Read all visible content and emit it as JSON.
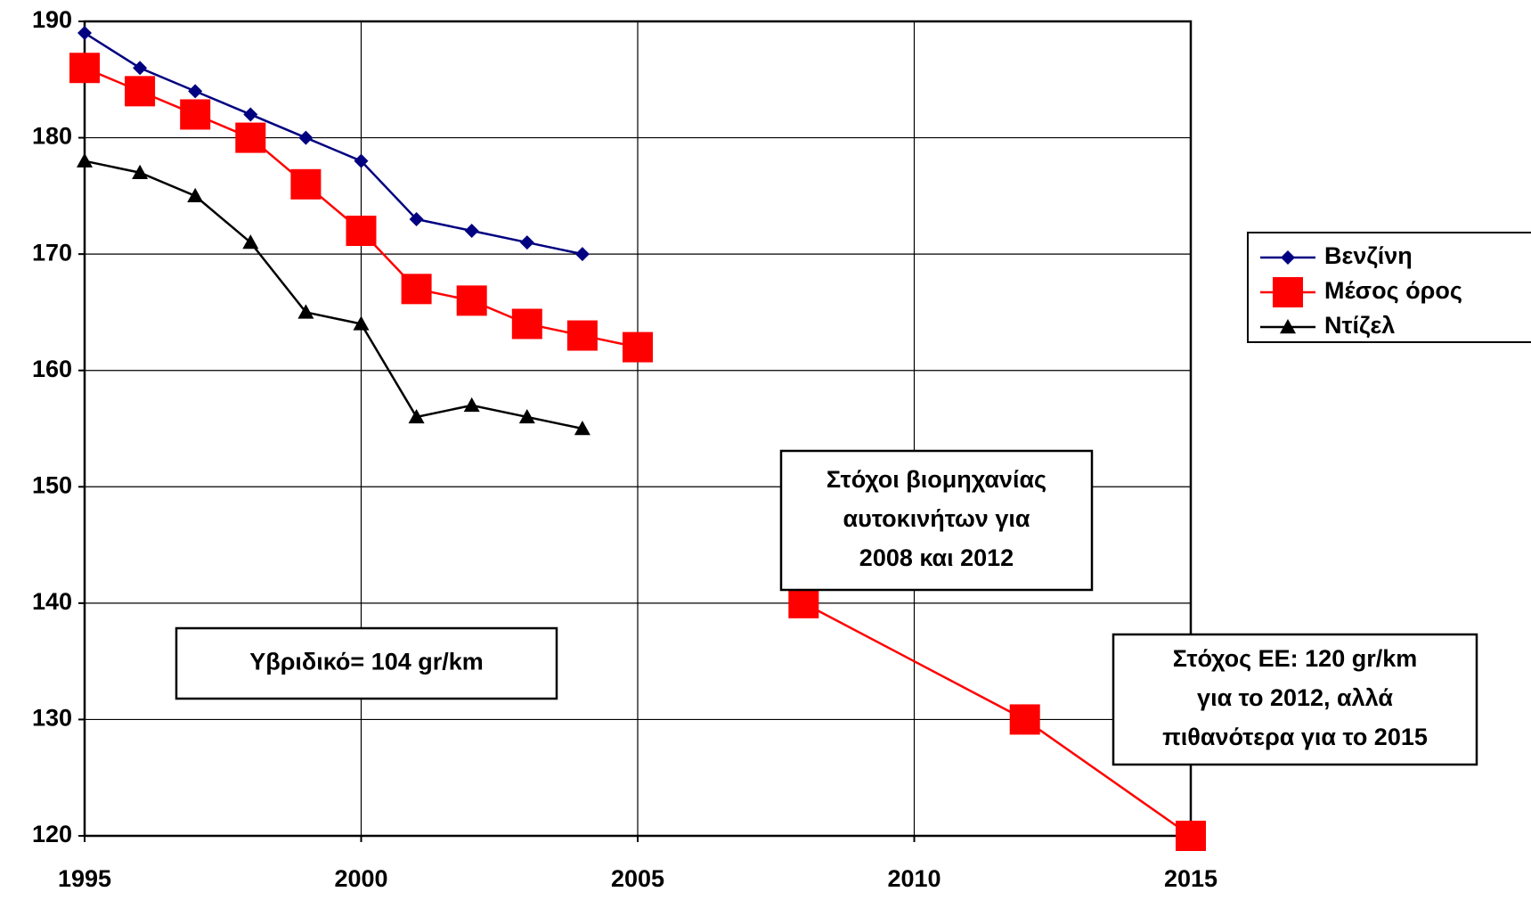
{
  "chart_data": {
    "type": "line",
    "xlim": [
      1995,
      2015
    ],
    "xticks": [
      1995,
      2000,
      2005,
      2010,
      2015
    ],
    "ylim": [
      120,
      190
    ],
    "yticks": [
      120,
      130,
      140,
      150,
      160,
      170,
      180,
      190
    ],
    "grid": true,
    "legend": "right",
    "series": [
      {
        "name": "Βενζίνη",
        "color": "#000080",
        "marker": "diamond",
        "x": [
          1995,
          1996,
          1997,
          1998,
          1999,
          2000,
          2001,
          2002,
          2003,
          2004
        ],
        "values": [
          189,
          186,
          184,
          182,
          180,
          178,
          173,
          172,
          171,
          170
        ]
      },
      {
        "name": "Μέσος όρος",
        "color": "#ff0000",
        "marker": "square",
        "x": [
          1995,
          1996,
          1997,
          1998,
          1999,
          2000,
          2001,
          2002,
          2003,
          2004,
          2005,
          null,
          2008,
          2012,
          2015
        ],
        "values": [
          186,
          184,
          182,
          180,
          176,
          172,
          167,
          166,
          164,
          163,
          162,
          null,
          140,
          130,
          120
        ]
      },
      {
        "name": "Ντίζελ",
        "color": "#000000",
        "marker": "triangle",
        "x": [
          1995,
          1996,
          1997,
          1998,
          1999,
          2000,
          2001,
          2002,
          2003,
          2004
        ],
        "values": [
          178,
          177,
          175,
          171,
          165,
          164,
          156,
          157,
          156,
          155
        ]
      }
    ],
    "annotations": [
      {
        "lines": [
          "Υβριδικό= 104 gr/km"
        ]
      },
      {
        "lines": [
          "Στόχοι βιομηχανίας",
          "αυτοκινήτων για",
          "2008 και 2012"
        ]
      },
      {
        "lines": [
          "Στόχος ΕΕ: 120 gr/km",
          "για το 2012, αλλά",
          "πιθανότερα για το 2015"
        ]
      }
    ]
  }
}
